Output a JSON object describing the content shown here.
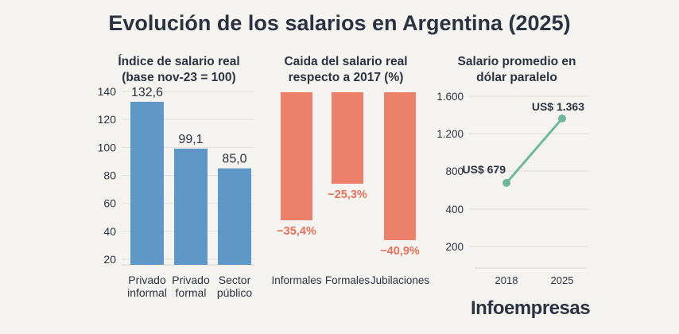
{
  "title": "Evolución de los salarios en Argentina (2025)",
  "brand": "Infoempresas",
  "colors": {
    "blue": "#5f97c6",
    "red": "#ec806b",
    "red_label": "#e8715b",
    "teal": "#6fb89f",
    "grid": "#e4e1dc",
    "text": "#2b3342"
  },
  "chart_data": [
    {
      "type": "bar",
      "title_lines": [
        "Índice de salario real",
        "(base nov-23 = 100)"
      ],
      "categories": [
        [
          "Privado",
          "informal"
        ],
        [
          "Privado",
          "formal"
        ],
        [
          "Sector",
          "público"
        ]
      ],
      "values": [
        132.6,
        99.1,
        85.0
      ],
      "data_labels": [
        "132,6",
        "99,1",
        "85,0"
      ],
      "yticks": [
        "140",
        "120",
        "100",
        "80",
        "60",
        "40",
        "20"
      ],
      "ylim": [
        10,
        140
      ],
      "grid": true
    },
    {
      "type": "bar",
      "title_lines": [
        "Caida del salario real",
        "respecto a 2017 (%)"
      ],
      "categories": [
        "Informales",
        "Formales",
        "Jubilaciones"
      ],
      "values": [
        -35.4,
        -25.3,
        -40.9
      ],
      "data_labels": [
        "−35,4%",
        "−25,3%",
        "−40,9%"
      ],
      "grid": false
    },
    {
      "type": "line",
      "title_lines": [
        "Salario promedio en",
        "dólar paralelo"
      ],
      "x": [
        "2018",
        "2025"
      ],
      "values": [
        679,
        1363
      ],
      "data_labels": [
        "US$ 679",
        "US$ 1.363"
      ],
      "yticks": [
        "1.600",
        "1.200",
        "800",
        "400",
        "200"
      ],
      "grid": true
    }
  ]
}
